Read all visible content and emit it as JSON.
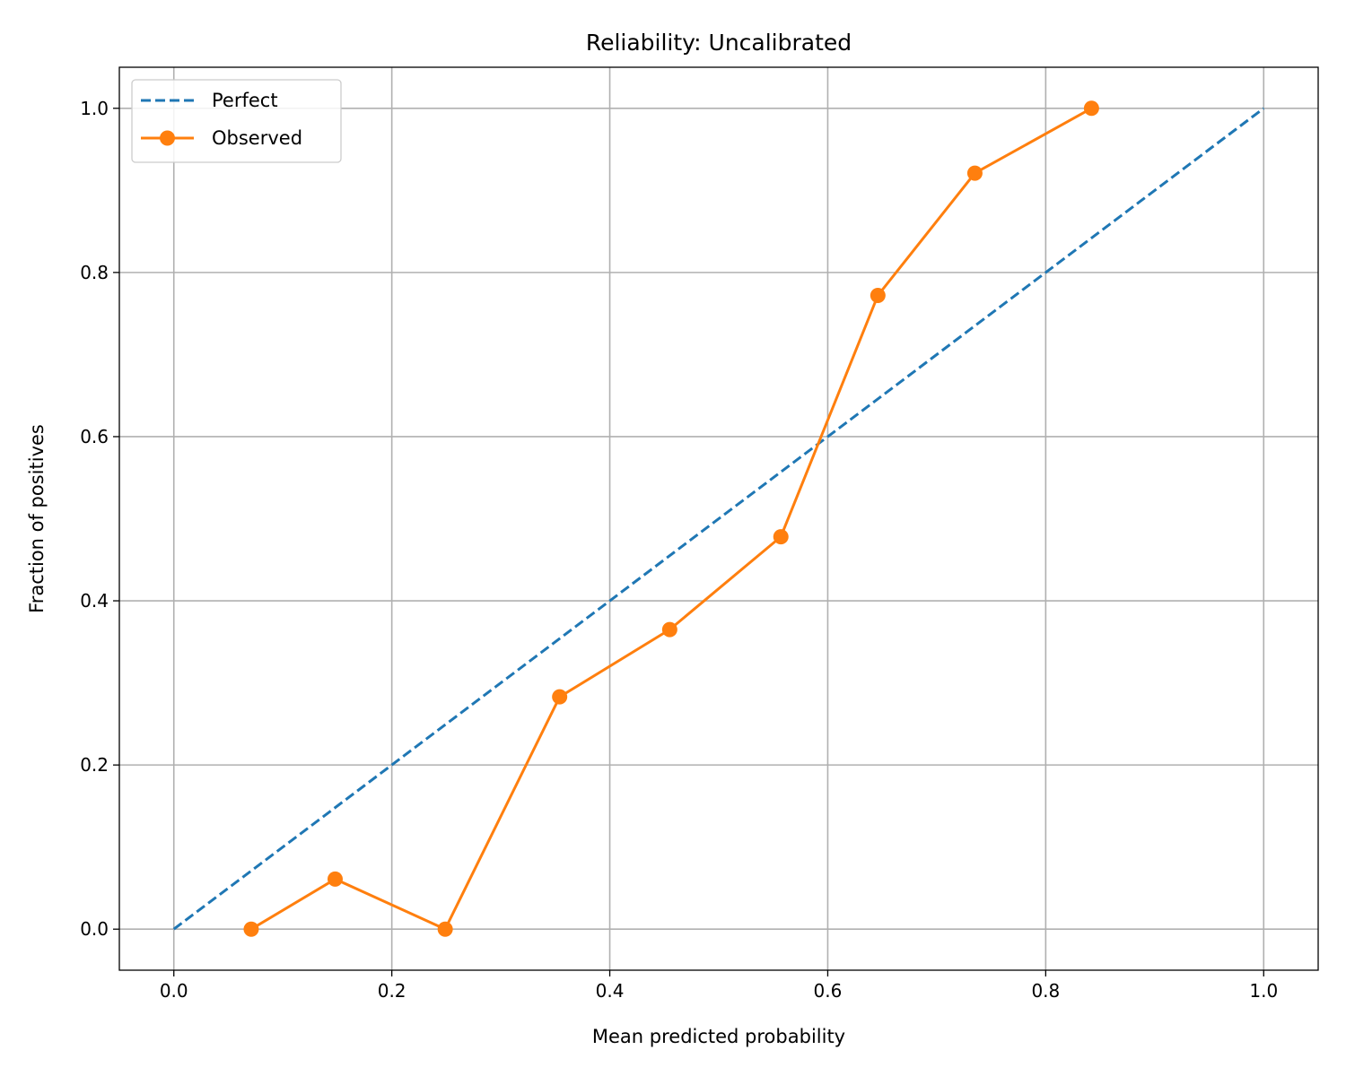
{
  "chart_data": {
    "type": "line",
    "title": "Reliability: Uncalibrated",
    "xlabel": "Mean predicted probability",
    "ylabel": "Fraction of positives",
    "xlim": [
      -0.05,
      1.05
    ],
    "ylim": [
      -0.05,
      1.05
    ],
    "xticks": [
      0.0,
      0.2,
      0.4,
      0.6,
      0.8,
      1.0
    ],
    "xtick_labels": [
      "0.0",
      "0.2",
      "0.4",
      "0.6",
      "0.8",
      "1.0"
    ],
    "yticks": [
      0.0,
      0.2,
      0.4,
      0.6,
      0.8,
      1.0
    ],
    "ytick_labels": [
      "0.0",
      "0.2",
      "0.4",
      "0.6",
      "0.8",
      "1.0"
    ],
    "grid": true,
    "legend_position": "upper-left",
    "series": [
      {
        "name": "Perfect",
        "style": "dashed",
        "color": "#1f77b4",
        "x": [
          0.0,
          1.0
        ],
        "y": [
          0.0,
          1.0
        ]
      },
      {
        "name": "Observed",
        "style": "solid-with-markers",
        "color": "#ff7f0e",
        "x": [
          0.071,
          0.148,
          0.249,
          0.354,
          0.455,
          0.557,
          0.646,
          0.735,
          0.842
        ],
        "y": [
          0.0,
          0.061,
          0.0,
          0.283,
          0.365,
          0.478,
          0.772,
          0.921,
          1.0
        ]
      }
    ]
  }
}
